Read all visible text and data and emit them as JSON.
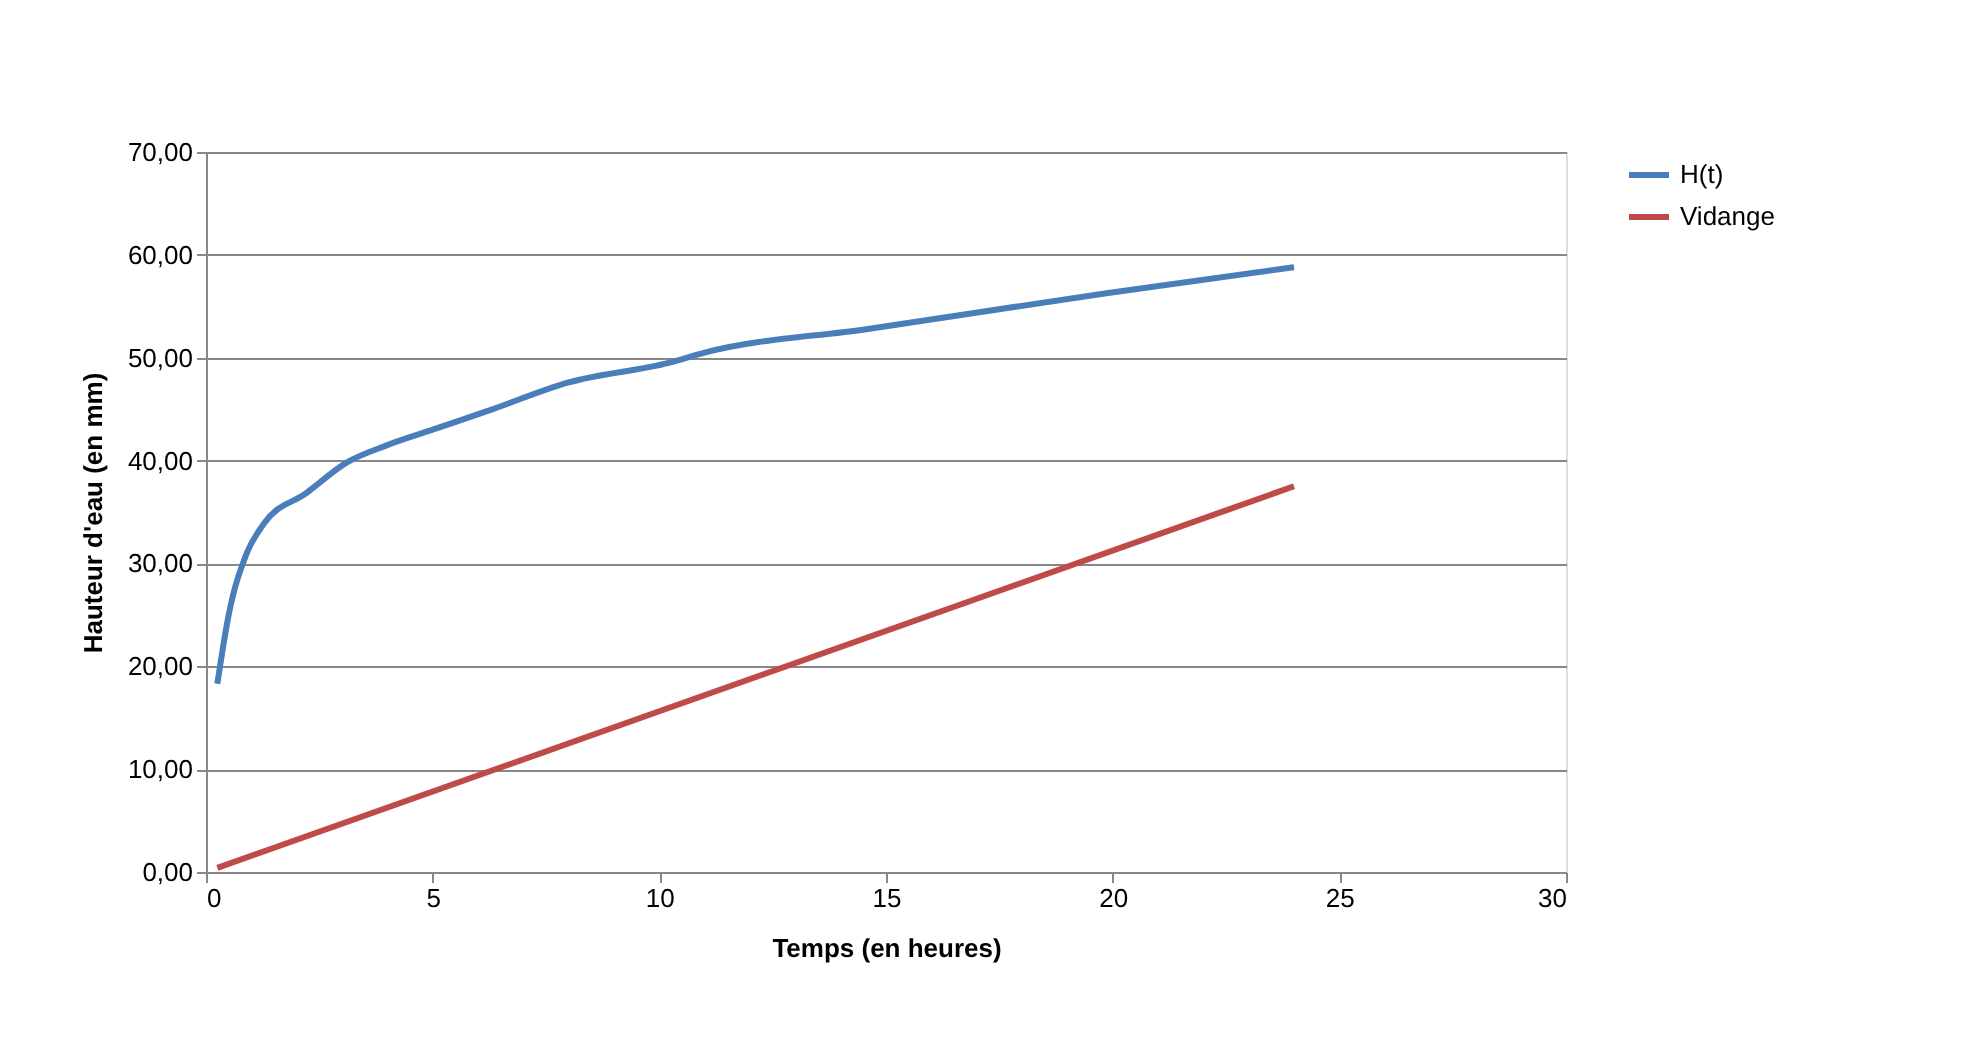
{
  "chart_data": {
    "type": "line",
    "xlabel": "Temps (en heures)",
    "ylabel": "Hauteur d'eau (en mm)",
    "xlim": [
      0,
      30
    ],
    "xticks": [
      0,
      5,
      10,
      15,
      20,
      25,
      30
    ],
    "ylim": [
      0,
      70
    ],
    "yticks": [
      {
        "value": 0,
        "label": "0,00"
      },
      {
        "value": 10,
        "label": "10,00"
      },
      {
        "value": 20,
        "label": "20,00"
      },
      {
        "value": 30,
        "label": "30,00"
      },
      {
        "value": 40,
        "label": "40,00"
      },
      {
        "value": 50,
        "label": "50,00"
      },
      {
        "value": 60,
        "label": "60,00"
      },
      {
        "value": 70,
        "label": "70,00"
      }
    ],
    "grid": "y",
    "legend": "right",
    "marker": "none",
    "line_style": "solid",
    "series": [
      {
        "name": "H(t)",
        "color": "#4a7ebb",
        "x": [
          0.25,
          0.5,
          0.9,
          1.3,
          2.2,
          3.1,
          4,
          5,
          6.2,
          8,
          10.2,
          11,
          14.6,
          19.9,
          24
        ],
        "values": [
          18.3,
          25,
          31,
          34,
          36.8,
          39.8,
          41.5,
          43,
          44.8,
          47.6,
          49.5,
          50.5,
          52.8,
          56.3,
          58.8
        ]
      },
      {
        "name": "Vidange",
        "color": "#be4b48",
        "x": [
          0.25,
          24
        ],
        "values": [
          0.4,
          37.5
        ]
      }
    ]
  }
}
